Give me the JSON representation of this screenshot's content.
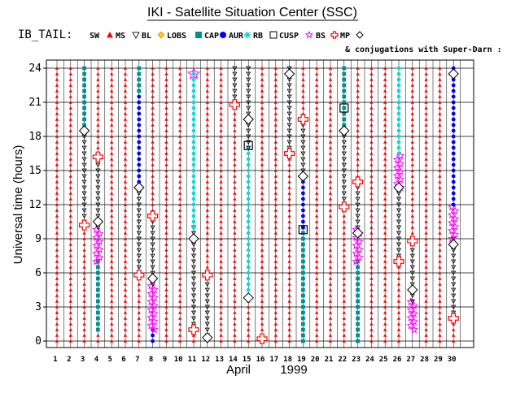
{
  "chart_data": {
    "type": "scatter",
    "title": "IKI - Satellite Situation Center (SSC)",
    "series_label": "IB_TAIL:",
    "subtitle": "& conjugations with Super-Darn :",
    "ylabel": "Universal time (hours)",
    "xlabel": "April",
    "year": "1999",
    "x_ticks": [
      1,
      2,
      3,
      4,
      5,
      6,
      7,
      8,
      9,
      10,
      11,
      12,
      13,
      14,
      15,
      16,
      17,
      18,
      19,
      20,
      21,
      22,
      23,
      24,
      25,
      26,
      27,
      28,
      29,
      30
    ],
    "y_ticks": [
      0,
      3,
      6,
      9,
      12,
      15,
      18,
      21,
      24
    ],
    "xlim": [
      1,
      30
    ],
    "ylim": [
      0,
      24
    ],
    "legend": [
      {
        "key": "SW",
        "label": "SW",
        "symbol": "triangle-up",
        "color": "#ff0000"
      },
      {
        "key": "MS",
        "label": "MS",
        "symbol": "triangle-down-open",
        "color": "#000000"
      },
      {
        "key": "BL",
        "label": "BL",
        "symbol": "diamond-filled",
        "color": "#ffcc00"
      },
      {
        "key": "LOBS",
        "label": "LOBS",
        "symbol": "square-filled",
        "color": "#009090"
      },
      {
        "key": "CAP",
        "label": "CAP",
        "symbol": "circle-filled",
        "color": "#0000ff"
      },
      {
        "key": "AUR",
        "label": "AUR",
        "symbol": "asterisk",
        "color": "#00dddd"
      },
      {
        "key": "RB",
        "label": "RB",
        "symbol": "square-open",
        "color": "#000000"
      },
      {
        "key": "CUSP",
        "label": "CUSP",
        "symbol": "star-open",
        "color": "#ff00ff"
      },
      {
        "key": "BS",
        "label": "BS",
        "symbol": "cross-open",
        "color": "#ff0000"
      },
      {
        "key": "MP",
        "label": "MP",
        "symbol": "diamond-open",
        "color": "#000000"
      }
    ],
    "regions": [
      {
        "day": 1,
        "type": "SW",
        "from": 0,
        "to": 24
      },
      {
        "day": 2,
        "type": "SW",
        "from": 0,
        "to": 24
      },
      {
        "day": 3,
        "type": "SW",
        "from": 0,
        "to": 10
      },
      {
        "day": 3,
        "type": "MS",
        "from": 10,
        "to": 18.5
      },
      {
        "day": 3,
        "type": "LOBS",
        "from": 18.5,
        "to": 24
      },
      {
        "day": 4,
        "type": "SW",
        "from": 0,
        "to": 1
      },
      {
        "day": 4,
        "type": "LOBS",
        "from": 1,
        "to": 7
      },
      {
        "day": 4,
        "type": "CUSP",
        "from": 7,
        "to": 10
      },
      {
        "day": 4,
        "type": "MS",
        "from": 10,
        "to": 16
      },
      {
        "day": 4,
        "type": "SW",
        "from": 16,
        "to": 24
      },
      {
        "day": 5,
        "type": "SW",
        "from": 0,
        "to": 24
      },
      {
        "day": 6,
        "type": "SW",
        "from": 0,
        "to": 24
      },
      {
        "day": 7,
        "type": "SW",
        "from": 0,
        "to": 6
      },
      {
        "day": 7,
        "type": "MS",
        "from": 6,
        "to": 13.5
      },
      {
        "day": 7,
        "type": "CAP",
        "from": 13.5,
        "to": 22
      },
      {
        "day": 7,
        "type": "LOBS",
        "from": 22,
        "to": 24
      },
      {
        "day": 8,
        "type": "CAP",
        "from": 0,
        "to": 1
      },
      {
        "day": 8,
        "type": "CUSP",
        "from": 1,
        "to": 5
      },
      {
        "day": 8,
        "type": "MS",
        "from": 5,
        "to": 11
      },
      {
        "day": 8,
        "type": "SW",
        "from": 11,
        "to": 24
      },
      {
        "day": 9,
        "type": "SW",
        "from": 0,
        "to": 24
      },
      {
        "day": 10,
        "type": "SW",
        "from": 0,
        "to": 24
      },
      {
        "day": 11,
        "type": "SW",
        "from": 0,
        "to": 1
      },
      {
        "day": 11,
        "type": "MS",
        "from": 1,
        "to": 10
      },
      {
        "day": 11,
        "type": "AUR",
        "from": 10,
        "to": 23.5
      },
      {
        "day": 12,
        "type": "MS",
        "from": 0,
        "to": 6
      },
      {
        "day": 12,
        "type": "SW",
        "from": 6,
        "to": 24
      },
      {
        "day": 13,
        "type": "SW",
        "from": 0,
        "to": 24
      },
      {
        "day": 14,
        "type": "SW",
        "from": 0,
        "to": 21
      },
      {
        "day": 14,
        "type": "MS",
        "from": 21,
        "to": 24
      },
      {
        "day": 15,
        "type": "SW",
        "from": 0,
        "to": 4
      },
      {
        "day": 15,
        "type": "AUR",
        "from": 4,
        "to": 17
      },
      {
        "day": 15,
        "type": "MS",
        "from": 17,
        "to": 24
      },
      {
        "day": 16,
        "type": "SW",
        "from": 0,
        "to": 24
      },
      {
        "day": 17,
        "type": "SW",
        "from": 0,
        "to": 24
      },
      {
        "day": 18,
        "type": "SW",
        "from": 0,
        "to": 16.5
      },
      {
        "day": 18,
        "type": "MS",
        "from": 16.5,
        "to": 24
      },
      {
        "day": 19,
        "type": "LOBS",
        "from": 0,
        "to": 10
      },
      {
        "day": 19,
        "type": "CAP",
        "from": 10,
        "to": 14.5
      },
      {
        "day": 19,
        "type": "MS",
        "from": 14.5,
        "to": 19.5
      },
      {
        "day": 19,
        "type": "SW",
        "from": 19.5,
        "to": 24
      },
      {
        "day": 20,
        "type": "SW",
        "from": 0,
        "to": 24
      },
      {
        "day": 21,
        "type": "SW",
        "from": 0,
        "to": 24
      },
      {
        "day": 22,
        "type": "SW",
        "from": 0,
        "to": 12
      },
      {
        "day": 22,
        "type": "MS",
        "from": 12,
        "to": 18.5
      },
      {
        "day": 22,
        "type": "LOBS",
        "from": 18.5,
        "to": 24
      },
      {
        "day": 23,
        "type": "LOBS",
        "from": 0,
        "to": 7
      },
      {
        "day": 23,
        "type": "CUSP",
        "from": 7,
        "to": 10
      },
      {
        "day": 23,
        "type": "MS",
        "from": 10,
        "to": 14
      },
      {
        "day": 23,
        "type": "SW",
        "from": 14,
        "to": 24
      },
      {
        "day": 24,
        "type": "SW",
        "from": 0,
        "to": 24
      },
      {
        "day": 25,
        "type": "SW",
        "from": 0,
        "to": 24
      },
      {
        "day": 26,
        "type": "SW",
        "from": 0,
        "to": 7
      },
      {
        "day": 26,
        "type": "MS",
        "from": 7,
        "to": 13.5
      },
      {
        "day": 26,
        "type": "CUSP",
        "from": 13.5,
        "to": 16.5
      },
      {
        "day": 26,
        "type": "AUR",
        "from": 16.5,
        "to": 24
      },
      {
        "day": 27,
        "type": "CUSP",
        "from": 1,
        "to": 3.5
      },
      {
        "day": 27,
        "type": "MS",
        "from": 3.5,
        "to": 9
      },
      {
        "day": 27,
        "type": "SW",
        "from": 9,
        "to": 24
      },
      {
        "day": 28,
        "type": "SW",
        "from": 0,
        "to": 24
      },
      {
        "day": 29,
        "type": "SW",
        "from": 0,
        "to": 24
      },
      {
        "day": 30,
        "type": "SW",
        "from": 0,
        "to": 2
      },
      {
        "day": 30,
        "type": "MS",
        "from": 2,
        "to": 9
      },
      {
        "day": 30,
        "type": "CUSP",
        "from": 9,
        "to": 12
      },
      {
        "day": 30,
        "type": "CAP",
        "from": 12,
        "to": 24
      }
    ],
    "crossings": [
      {
        "day": 3,
        "ut": 10.2,
        "type": "BS"
      },
      {
        "day": 3,
        "ut": 18.5,
        "type": "MP"
      },
      {
        "day": 4,
        "ut": 10.5,
        "type": "MP"
      },
      {
        "day": 4,
        "ut": 16.2,
        "type": "BS"
      },
      {
        "day": 7,
        "ut": 5.8,
        "type": "BS"
      },
      {
        "day": 7,
        "ut": 13.5,
        "type": "MP"
      },
      {
        "day": 8,
        "ut": 5.5,
        "type": "MP"
      },
      {
        "day": 8,
        "ut": 11.0,
        "type": "BS"
      },
      {
        "day": 11,
        "ut": 1.0,
        "type": "BS"
      },
      {
        "day": 11,
        "ut": 9.0,
        "type": "MP"
      },
      {
        "day": 11,
        "ut": 23.5,
        "type": "CUSP"
      },
      {
        "day": 12,
        "ut": 0.3,
        "type": "MP"
      },
      {
        "day": 12,
        "ut": 5.8,
        "type": "BS"
      },
      {
        "day": 14,
        "ut": 20.8,
        "type": "BS"
      },
      {
        "day": 15,
        "ut": 3.8,
        "type": "MP"
      },
      {
        "day": 15,
        "ut": 19.5,
        "type": "MP"
      },
      {
        "day": 16,
        "ut": 0.2,
        "type": "BS"
      },
      {
        "day": 18,
        "ut": 16.5,
        "type": "BS"
      },
      {
        "day": 18,
        "ut": 23.5,
        "type": "MP"
      },
      {
        "day": 19,
        "ut": 14.5,
        "type": "MP"
      },
      {
        "day": 19,
        "ut": 19.5,
        "type": "BS"
      },
      {
        "day": 22,
        "ut": 11.8,
        "type": "BS"
      },
      {
        "day": 22,
        "ut": 18.5,
        "type": "MP"
      },
      {
        "day": 23,
        "ut": 9.5,
        "type": "MP"
      },
      {
        "day": 23,
        "ut": 14.0,
        "type": "BS"
      },
      {
        "day": 26,
        "ut": 7.0,
        "type": "BS"
      },
      {
        "day": 26,
        "ut": 13.5,
        "type": "MP"
      },
      {
        "day": 27,
        "ut": 4.5,
        "type": "MP"
      },
      {
        "day": 27,
        "ut": 8.8,
        "type": "BS"
      },
      {
        "day": 30,
        "ut": 2.0,
        "type": "BS"
      },
      {
        "day": 30,
        "ut": 8.5,
        "type": "MP"
      },
      {
        "day": 30,
        "ut": 23.5,
        "type": "MP"
      }
    ],
    "conjugations": [
      {
        "day": 15,
        "ut": 17.2
      },
      {
        "day": 19,
        "ut": 9.8
      },
      {
        "day": 22,
        "ut": 20.5
      }
    ]
  }
}
